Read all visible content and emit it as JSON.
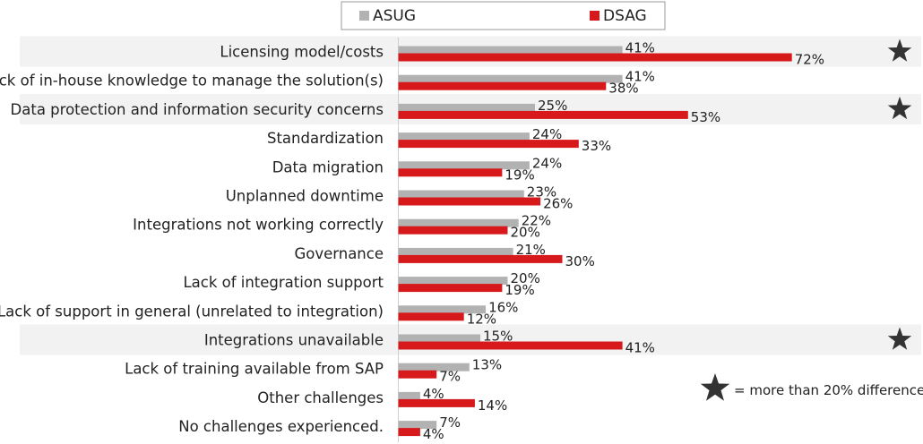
{
  "chart_data": {
    "type": "bar",
    "orientation": "horizontal",
    "categories": [
      "Licensing model/costs",
      "Lack of in-house knowledge to manage the solution(s)",
      "Data protection and information security concerns",
      "Standardization",
      "Data migration",
      "Unplanned downtime",
      "Integrations not working correctly",
      "Governance",
      "Lack of integration support",
      "Lack of support in general (unrelated to integration)",
      "Integrations unavailable",
      "Lack of training available from SAP",
      "Other challenges",
      "No challenges experienced."
    ],
    "series": [
      {
        "name": "ASUG",
        "color": "#b2b2b2",
        "values": [
          41,
          41,
          25,
          24,
          24,
          23,
          22,
          21,
          20,
          16,
          15,
          13,
          4,
          7
        ]
      },
      {
        "name": "DSAG",
        "color": "#d7191c",
        "values": [
          72,
          38,
          53,
          33,
          19,
          26,
          20,
          30,
          19,
          12,
          41,
          7,
          14,
          4
        ]
      }
    ],
    "value_suffix": "%",
    "xlim": [
      0,
      100
    ],
    "legend_position": "top",
    "highlighted": [
      true,
      false,
      true,
      false,
      false,
      false,
      false,
      false,
      false,
      false,
      true,
      false,
      false,
      false
    ],
    "star_icon": "star-icon",
    "star_note": "= more than 20% difference"
  }
}
